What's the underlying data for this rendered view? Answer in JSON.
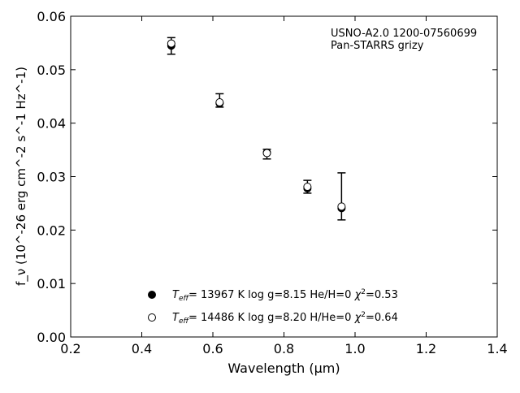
{
  "chart_data": {
    "type": "scatter",
    "annotation": {
      "line1": "USNO-A2.0 1200-07560699",
      "line2": "Pan-STARRS grizy"
    },
    "xlabel": "Wavelength (μm)",
    "ylabel": "f_ν (10^-26 erg cm^-2 s^-1 Hz^-1)",
    "xlim": [
      0.2,
      1.4
    ],
    "ylim": [
      0.0,
      0.06
    ],
    "xticks": [
      0.2,
      0.4,
      0.6,
      0.8,
      1.0,
      1.2,
      1.4
    ],
    "xtick_labels": [
      "0.2",
      "0.4",
      "0.6",
      "0.8",
      "1.0",
      "1.2",
      "1.4"
    ],
    "yticks": [
      0.0,
      0.01,
      0.02,
      0.03,
      0.04,
      0.05,
      0.06
    ],
    "ytick_labels": [
      "0.00",
      "0.01",
      "0.02",
      "0.03",
      "0.04",
      "0.05",
      "0.06"
    ],
    "grid": false,
    "legend_position": "bottom-center",
    "observed": {
      "x": [
        0.483,
        0.619,
        0.752,
        0.866,
        0.962
      ],
      "y": [
        0.0545,
        0.0442,
        0.0343,
        0.0282,
        0.0264
      ],
      "yerr_low": [
        0.0016,
        0.0012,
        0.001,
        0.0013,
        0.0045
      ],
      "yerr_high": [
        0.0015,
        0.0013,
        0.0008,
        0.0011,
        0.0043
      ]
    },
    "series": [
      {
        "name": "Teff= 13967 K  log g=8.15  He/H=0  χ2=0.53",
        "legend_parts": {
          "t": "T",
          "sub": "eff",
          "rest": "= 13967 K  log g=8.15  He/H=0  ",
          "chi": "χ",
          "sup": "2",
          "val": "=0.53"
        },
        "marker": "filled",
        "x": [
          0.483,
          0.619,
          0.752,
          0.866,
          0.962
        ],
        "y": [
          0.0545,
          0.0437,
          0.0345,
          0.0278,
          0.0241
        ]
      },
      {
        "name": "Teff= 14486 K  log g=8.20  H/He=0  χ2=0.64",
        "legend_parts": {
          "t": "T",
          "sub": "eff",
          "rest": "= 14486 K  log g=8.20  H/He=0  ",
          "chi": "χ",
          "sup": "2",
          "val": "=0.64"
        },
        "marker": "open",
        "x": [
          0.483,
          0.619,
          0.752,
          0.866,
          0.962
        ],
        "y": [
          0.0549,
          0.0439,
          0.0344,
          0.0281,
          0.0244
        ]
      }
    ]
  }
}
